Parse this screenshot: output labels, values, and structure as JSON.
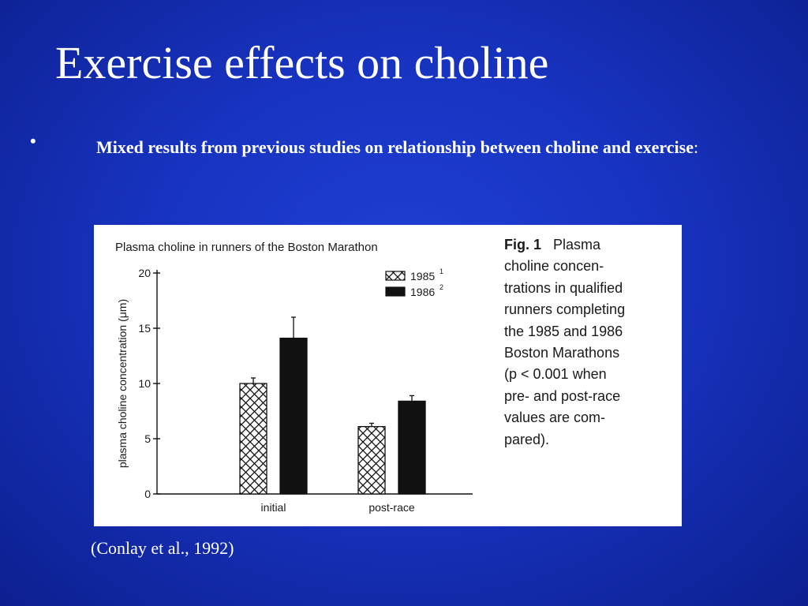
{
  "slide": {
    "title": "Exercise effects on choline",
    "bullet_marker": "•",
    "bullet_text": "Mixed results from previous studies on relationship between choline and exercise",
    "bullet_colon": ":",
    "citation": "(Conlay et al., 1992)"
  },
  "figure": {
    "caption_label": "Fig. 1",
    "caption_lines": [
      "Plasma",
      "choline  concen-",
      "trations in qualified",
      "runners  completing",
      "the 1985 and 1986",
      "Boston  Marathons",
      "(p < 0.001  when",
      "pre-  and post-race",
      "values are com-",
      "pared)."
    ]
  },
  "chart_data": {
    "type": "bar",
    "title": "Plasma choline in runners of the Boston Marathon",
    "xlabel": "",
    "ylabel": "plasma choline concentration (μm)",
    "ylim": [
      0,
      20
    ],
    "yticks": [
      0,
      5,
      10,
      15,
      20
    ],
    "categories": [
      "initial",
      "post-race"
    ],
    "series": [
      {
        "name": "1985",
        "superscript": "1",
        "pattern": "crosshatch",
        "values": [
          10.0,
          6.1
        ],
        "errors": [
          0.5,
          0.3
        ]
      },
      {
        "name": "1986",
        "superscript": "2",
        "pattern": "solid-black",
        "values": [
          14.1,
          8.4
        ],
        "errors": [
          1.9,
          0.5
        ]
      }
    ],
    "legend_position": "top-right"
  }
}
